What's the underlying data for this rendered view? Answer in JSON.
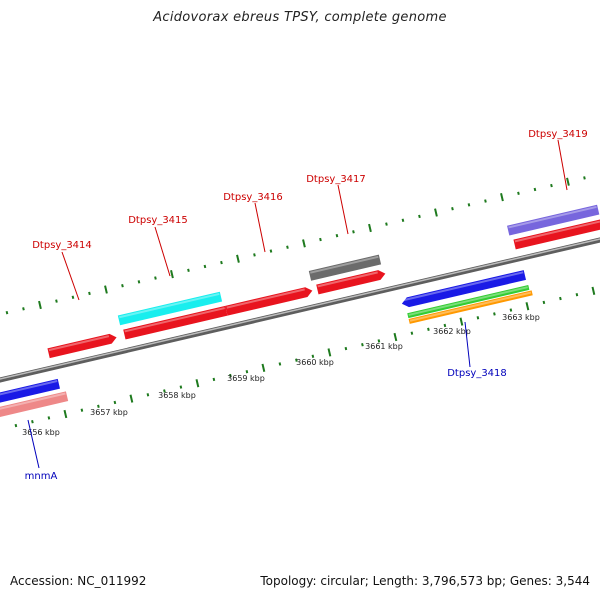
{
  "title": "Acidovorax ebreus TPSY, complete genome",
  "footer": {
    "accession": "Accession: NC_011992",
    "summary": "Topology: circular; Length: 3,796,573 bp; Genes: 3,544"
  },
  "colors": {
    "backbone": "#8a8a8a",
    "ticks": "#1e7a1e",
    "label_forward": "#cc0000",
    "label_reverse": "#0000bb"
  },
  "kbp_labels": [
    {
      "id": "kbp-3656",
      "text": "3656 kbp"
    },
    {
      "id": "kbp-3657",
      "text": "3657 kbp"
    },
    {
      "id": "kbp-3658",
      "text": "3658 kbp"
    },
    {
      "id": "kbp-3659",
      "text": "3659 kbp"
    },
    {
      "id": "kbp-3660",
      "text": "3660 kbp"
    },
    {
      "id": "kbp-3661",
      "text": "3661 kbp"
    },
    {
      "id": "kbp-3662",
      "text": "3662 kbp"
    },
    {
      "id": "kbp-3663",
      "text": "3663 kbp"
    }
  ],
  "gene_labels": [
    {
      "id": "Dtpsy_3414",
      "text": "Dtpsy_3414",
      "strand": "forward"
    },
    {
      "id": "Dtpsy_3415",
      "text": "Dtpsy_3415",
      "strand": "forward"
    },
    {
      "id": "Dtpsy_3416",
      "text": "Dtpsy_3416",
      "strand": "forward"
    },
    {
      "id": "Dtpsy_3417",
      "text": "Dtpsy_3417",
      "strand": "forward"
    },
    {
      "id": "Dtpsy_3419",
      "text": "Dtpsy_3419",
      "strand": "forward"
    },
    {
      "id": "Dtpsy_3418",
      "text": "Dtpsy_3418",
      "strand": "reverse"
    },
    {
      "id": "mnmA",
      "text": "mnmA",
      "strand": "reverse"
    }
  ],
  "features": [
    {
      "name": "gene-Dtpsy_3414",
      "color": "#e8141e"
    },
    {
      "name": "gene-Dtpsy_3415",
      "color": "#e8141e"
    },
    {
      "name": "gene-Dtpsy_3415-annotation",
      "color": "#19eeee"
    },
    {
      "name": "gene-Dtpsy_3416",
      "color": "#e8141e"
    },
    {
      "name": "gene-Dtpsy_3417",
      "color": "#e8141e"
    },
    {
      "name": "gene-Dtpsy_3417-annotation",
      "color": "#6b6b6b"
    },
    {
      "name": "gene-Dtpsy_3419",
      "color": "#e8141e"
    },
    {
      "name": "gene-Dtpsy_3419-annotation",
      "color": "#7766dd"
    },
    {
      "name": "gene-Dtpsy_3418",
      "color": "#1a1ae6"
    },
    {
      "name": "gene-Dtpsy_3418-annotation-green",
      "color": "#33cc33"
    },
    {
      "name": "gene-Dtpsy_3418-annotation-orange",
      "color": "#ff9900"
    },
    {
      "name": "gene-mnmA",
      "color": "#1a1ae6"
    },
    {
      "name": "gene-mnmA-annotation",
      "color": "#ee8888"
    }
  ]
}
